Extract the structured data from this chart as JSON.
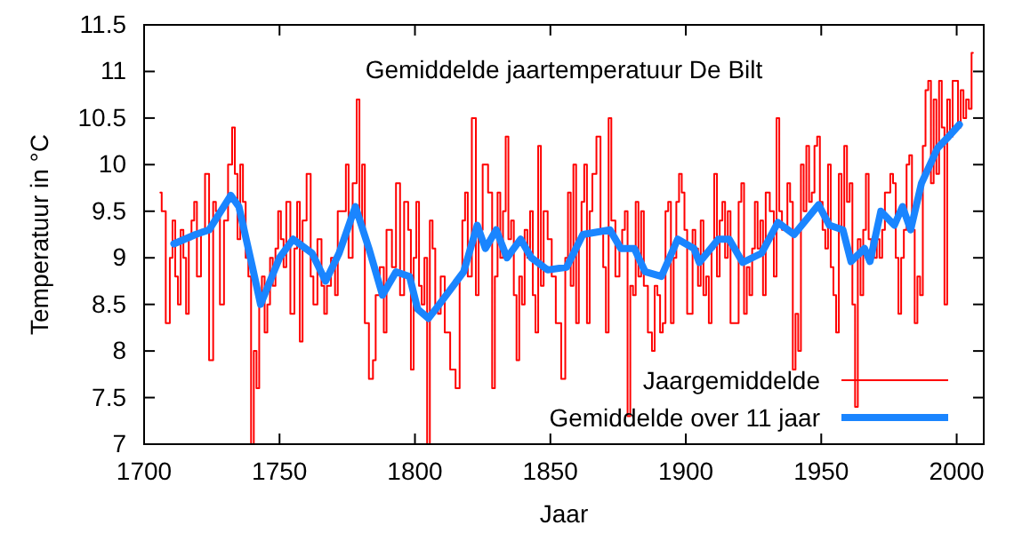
{
  "chart_data": {
    "type": "line",
    "title": "Gemiddelde jaartemperatuur De Bilt",
    "xlabel": "Jaar",
    "ylabel": "Temperatuur in °C",
    "xlim": [
      1700,
      2010
    ],
    "ylim": [
      7,
      11.5
    ],
    "xticks": [
      1700,
      1750,
      1800,
      1850,
      1900,
      1950,
      2000
    ],
    "yticks": [
      7,
      7.5,
      8,
      8.5,
      9,
      9.5,
      10,
      10.5,
      11,
      11.5
    ],
    "grid": false,
    "legend": "bottom right",
    "marker": "none",
    "line_style": "solid",
    "series": [
      {
        "name": "Jaargemiddelde",
        "type": "step",
        "color": "#ff0000",
        "x": [
          1706,
          1707,
          1709,
          1710,
          1711,
          1712,
          1713,
          1714,
          1715,
          1716,
          1717,
          1718,
          1719,
          1720,
          1722,
          1723,
          1725,
          1726,
          1727,
          1729,
          1730,
          1732,
          1733,
          1734,
          1735,
          1736,
          1737,
          1738,
          1739,
          1740,
          1741,
          1742,
          1743,
          1744,
          1745,
          1746,
          1747,
          1748,
          1749,
          1750,
          1751,
          1752,
          1753,
          1755,
          1756,
          1757,
          1758,
          1759,
          1761,
          1762,
          1763,
          1765,
          1766,
          1767,
          1768,
          1770,
          1771,
          1772,
          1774,
          1775,
          1776,
          1778,
          1779,
          1780,
          1781,
          1782,
          1784,
          1785,
          1786,
          1788,
          1789,
          1790,
          1791,
          1792,
          1794,
          1795,
          1797,
          1798,
          1799,
          1800,
          1801,
          1802,
          1803,
          1804,
          1805,
          1806,
          1807,
          1808,
          1809,
          1810,
          1812,
          1814,
          1816,
          1817,
          1818,
          1819,
          1820,
          1822,
          1823,
          1824,
          1826,
          1828,
          1829,
          1830,
          1831,
          1832,
          1833,
          1834,
          1835,
          1836,
          1837,
          1838,
          1839,
          1840,
          1841,
          1842,
          1843,
          1844,
          1845,
          1846,
          1847,
          1848,
          1850,
          1851,
          1853,
          1855,
          1856,
          1857,
          1858,
          1859,
          1860,
          1861,
          1862,
          1863,
          1864,
          1865,
          1866,
          1868,
          1869,
          1870,
          1871,
          1872,
          1873,
          1875,
          1876,
          1877,
          1878,
          1879,
          1880,
          1881,
          1882,
          1883,
          1884,
          1885,
          1887,
          1888,
          1889,
          1890,
          1891,
          1892,
          1893,
          1894,
          1895,
          1896,
          1897,
          1898,
          1899,
          1900,
          1901,
          1902,
          1903,
          1904,
          1905,
          1906,
          1907,
          1908,
          1909,
          1910,
          1911,
          1912,
          1913,
          1914,
          1915,
          1916,
          1917,
          1919,
          1920,
          1921,
          1922,
          1923,
          1924,
          1925,
          1926,
          1927,
          1928,
          1929,
          1930,
          1932,
          1933,
          1934,
          1935,
          1936,
          1937,
          1938,
          1939,
          1940,
          1941,
          1942,
          1943,
          1944,
          1945,
          1946,
          1947,
          1948,
          1949,
          1950,
          1951,
          1952,
          1953,
          1954,
          1955,
          1956,
          1957,
          1958,
          1959,
          1960,
          1961,
          1962,
          1963,
          1964,
          1965,
          1966,
          1967,
          1968,
          1969,
          1970,
          1971,
          1972,
          1973,
          1974,
          1975,
          1976,
          1977,
          1978,
          1979,
          1980,
          1981,
          1982,
          1983,
          1984,
          1985,
          1986,
          1987,
          1988,
          1989,
          1990,
          1991,
          1992,
          1993,
          1994,
          1995,
          1996,
          1997,
          1998,
          1999,
          2000,
          2001,
          2002,
          2003,
          2004,
          2005,
          2006
        ],
        "values": [
          9.7,
          9.5,
          8.3,
          9.0,
          9.4,
          8.8,
          8.5,
          9.3,
          9.0,
          8.4,
          9.2,
          9.4,
          9.6,
          8.8,
          9.3,
          9.9,
          7.9,
          9.6,
          9.5,
          8.5,
          9.4,
          10.0,
          10.4,
          9.9,
          9.2,
          10.0,
          9.6,
          9.0,
          8.8,
          7.0,
          8.0,
          7.6,
          8.5,
          8.8,
          8.2,
          8.5,
          9.0,
          8.7,
          9.1,
          9.5,
          9.2,
          8.9,
          9.6,
          8.4,
          9.1,
          9.6,
          8.1,
          9.4,
          9.9,
          8.8,
          8.5,
          9.2,
          8.7,
          8.4,
          8.7,
          9.0,
          8.6,
          9.5,
          9.5,
          10.0,
          9.0,
          9.8,
          10.7,
          9.4,
          10.0,
          8.3,
          7.7,
          7.9,
          8.6,
          8.9,
          8.2,
          9.3,
          9.3,
          8.9,
          9.8,
          8.6,
          9.6,
          9.3,
          7.8,
          9.0,
          9.6,
          8.7,
          8.5,
          9.0,
          7.0,
          9.4,
          9.1,
          8.5,
          8.4,
          8.8,
          8.2,
          7.8,
          7.6,
          8.8,
          9.4,
          9.7,
          8.8,
          10.5,
          8.6,
          9.3,
          10.0,
          9.7,
          7.6,
          8.8,
          9.7,
          9.0,
          9.5,
          10.3,
          9.2,
          9.4,
          8.6,
          7.9,
          8.8,
          8.5,
          9.3,
          9.0,
          9.5,
          8.6,
          8.2,
          10.2,
          8.7,
          9.5,
          9.2,
          8.8,
          8.3,
          7.7,
          9.0,
          9.7,
          8.7,
          10.0,
          8.3,
          9.2,
          9.6,
          10.0,
          8.3,
          9.5,
          9.9,
          10.3,
          9.3,
          8.9,
          8.2,
          10.5,
          9.4,
          8.8,
          9.1,
          9.3,
          9.5,
          7.3,
          8.7,
          8.6,
          9.6,
          8.8,
          9.5,
          8.7,
          8.2,
          8.0,
          8.7,
          8.6,
          8.2,
          8.3,
          9.5,
          9.6,
          8.3,
          9.0,
          9.6,
          9.9,
          9.7,
          9.3,
          8.4,
          8.4,
          9.3,
          9.1,
          8.7,
          9.4,
          8.6,
          8.8,
          8.3,
          9.1,
          9.9,
          8.8,
          9.4,
          9.6,
          9.0,
          9.5,
          8.3,
          8.3,
          9.6,
          9.8,
          8.4,
          8.9,
          8.6,
          9.1,
          9.6,
          9.1,
          9.4,
          8.6,
          9.7,
          9.5,
          8.8,
          10.5,
          9.5,
          9.3,
          9.3,
          9.8,
          9.6,
          7.8,
          8.4,
          8.0,
          10.0,
          9.5,
          10.2,
          9.6,
          9.7,
          10.2,
          10.3,
          9.6,
          9.3,
          9.1,
          10.0,
          8.9,
          8.6,
          8.2,
          9.9,
          9.3,
          10.2,
          9.6,
          9.8,
          8.5,
          7.4,
          9.2,
          8.6,
          9.3,
          9.9,
          9.2,
          9.1,
          9.0,
          9.2,
          9.0,
          9.3,
          9.7,
          9.7,
          9.9,
          9.8,
          9.0,
          8.4,
          9.0,
          9.3,
          10.0,
          10.1,
          9.3,
          8.3,
          8.8,
          8.6,
          10.2,
          10.8,
          10.9,
          9.8,
          10.7,
          9.9,
          10.9,
          10.4,
          8.5,
          10.7,
          10.3,
          10.9,
          10.9,
          10.4,
          10.8,
          10.5,
          10.7,
          10.6,
          11.2
        ]
      },
      {
        "name": "Gemiddelde over 11 jaar",
        "color": "#1a85ff",
        "x": [
          1711,
          1719,
          1724,
          1732,
          1735,
          1740,
          1743,
          1750,
          1755,
          1762,
          1767,
          1772,
          1778,
          1783,
          1788,
          1793,
          1798,
          1801,
          1805,
          1809,
          1818,
          1823,
          1826,
          1830,
          1834,
          1839,
          1843,
          1849,
          1856,
          1862,
          1872,
          1876,
          1881,
          1885,
          1891,
          1897,
          1903,
          1905,
          1912,
          1916,
          1921,
          1928,
          1934,
          1940,
          1949,
          1953,
          1958,
          1961,
          1966,
          1968,
          1972,
          1977,
          1980,
          1983,
          1987,
          1993,
          1997,
          2001
        ],
        "values": [
          9.15,
          9.25,
          9.3,
          9.67,
          9.55,
          8.9,
          8.5,
          9.0,
          9.2,
          9.05,
          8.75,
          9.05,
          9.55,
          9.1,
          8.6,
          8.85,
          8.8,
          8.45,
          8.35,
          8.5,
          8.85,
          9.35,
          9.1,
          9.3,
          9.0,
          9.2,
          9.0,
          8.87,
          8.9,
          9.25,
          9.3,
          9.1,
          9.1,
          8.85,
          8.8,
          9.2,
          9.1,
          8.95,
          9.2,
          9.2,
          8.95,
          9.05,
          9.38,
          9.25,
          9.57,
          9.35,
          9.3,
          8.96,
          9.1,
          8.96,
          9.5,
          9.35,
          9.55,
          9.3,
          9.8,
          10.18,
          10.3,
          10.43
        ]
      }
    ]
  }
}
